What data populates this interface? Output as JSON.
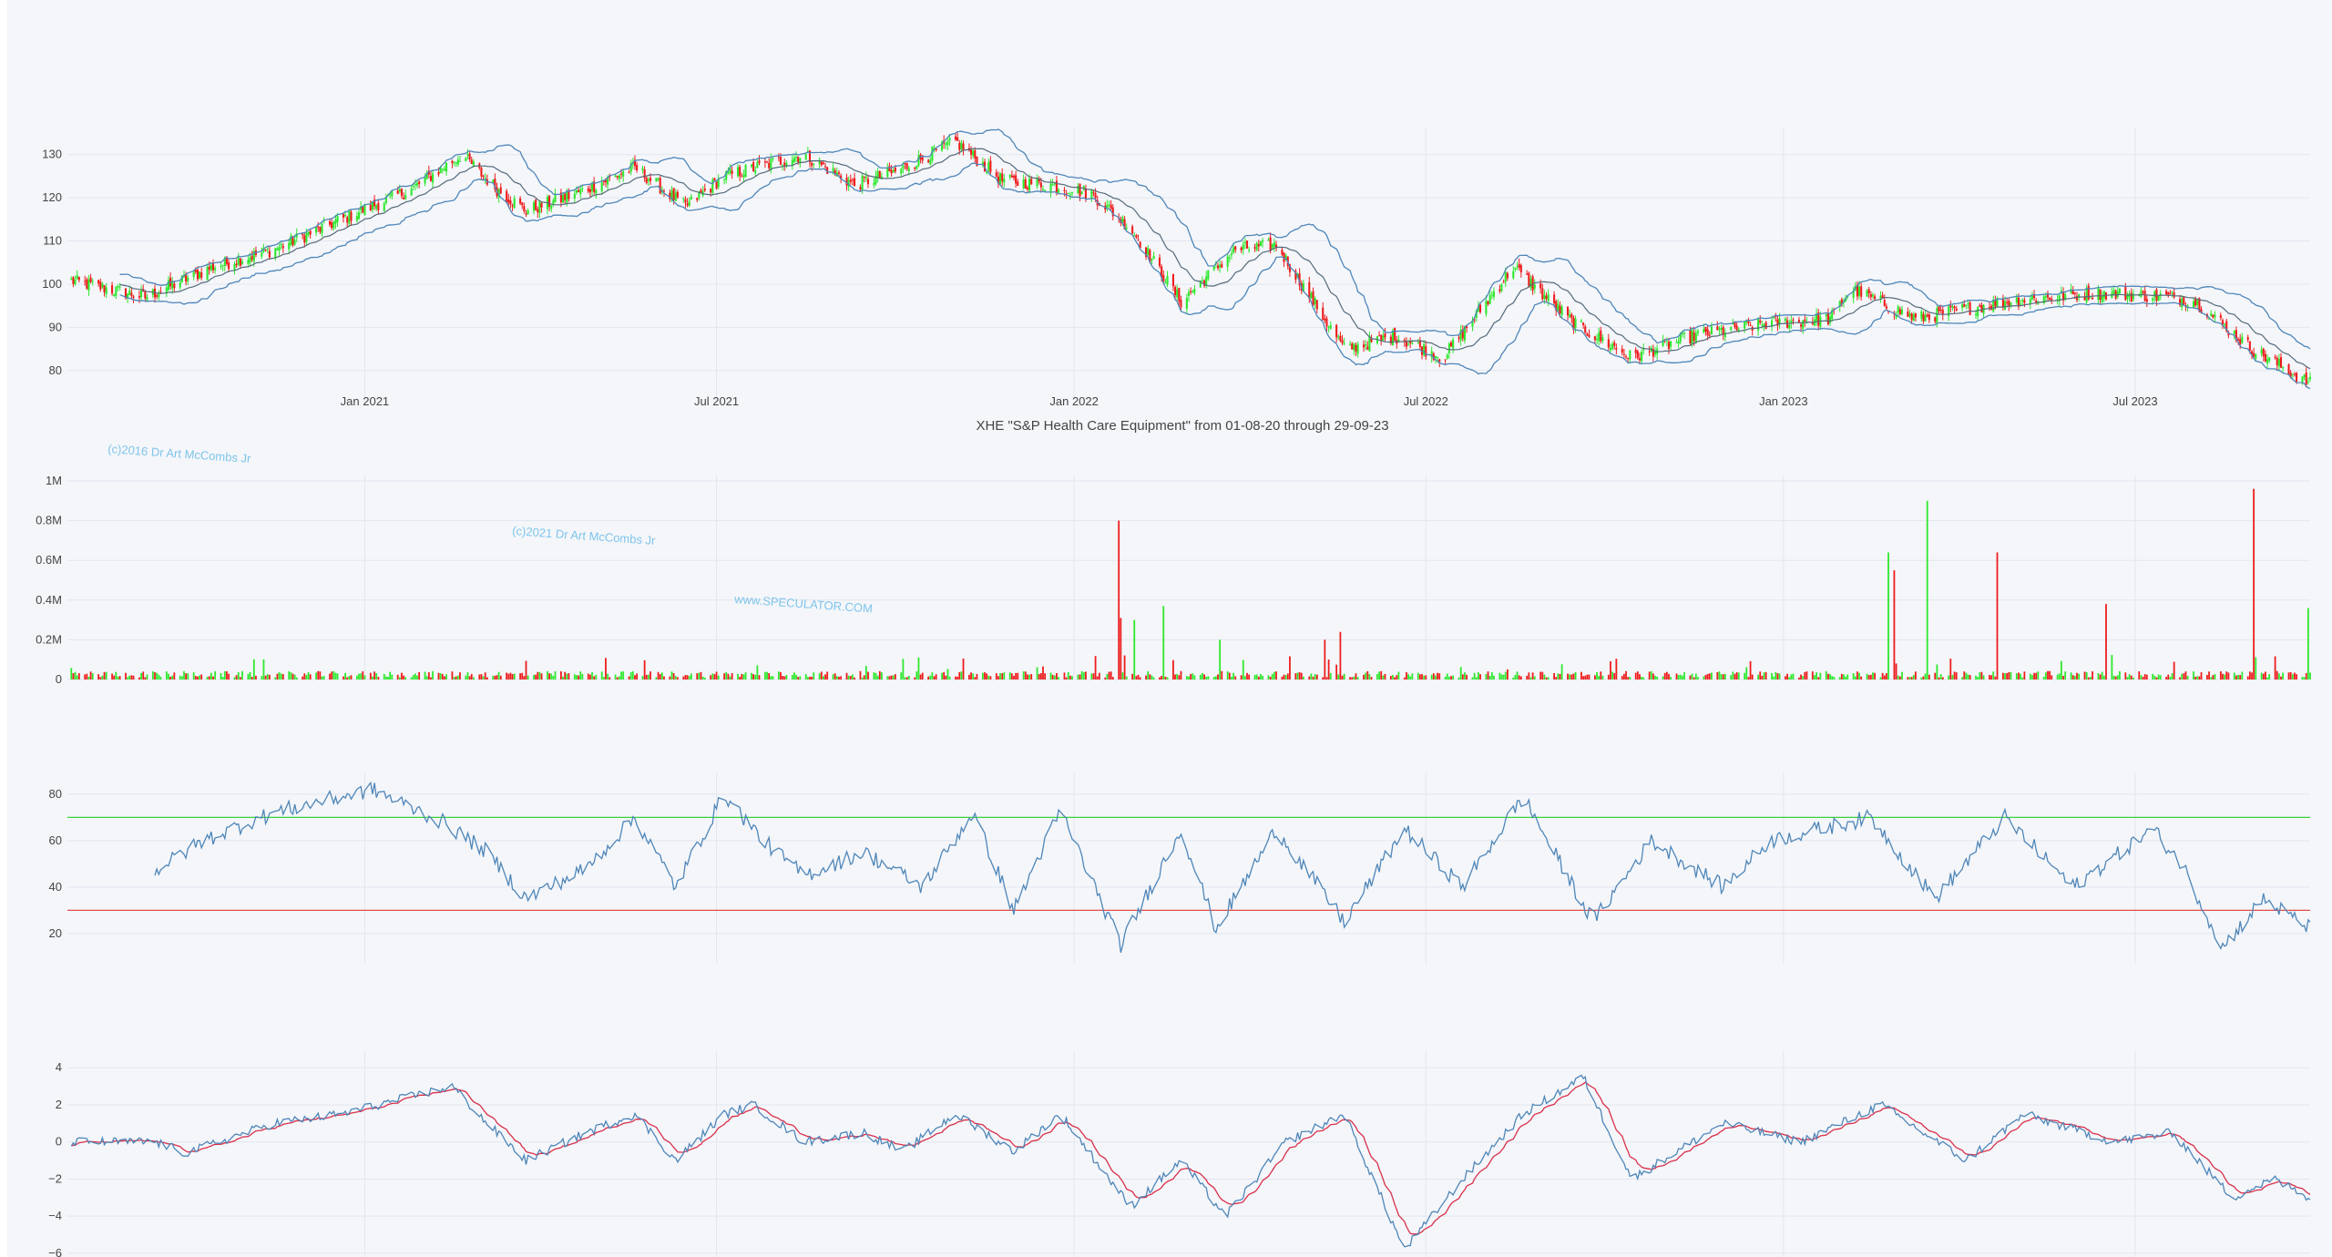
{
  "colors": {
    "up": "#2ee82e",
    "down": "#ee1c1c",
    "band": "#4f86b8",
    "rsi_line": "#4f86b8",
    "rsi_upper": "#3bd13b",
    "rsi_lower": "#e34a4a",
    "macd": "#4f86b8",
    "signal": "#d9304a",
    "grid": "#e2e6ee"
  },
  "watermarks": [
    "(c)2016 Dr Art McCombs Jr",
    "(c)2021 Dr Art McCombs Jr",
    "www.SPECULATOR.COM"
  ],
  "chart_data": [
    {
      "type": "candlestick",
      "title": "XHE \"S&P Health Care Equipment\" from 01-08-20 through 29-09-23",
      "x_tick_labels": [
        "Jan 2021",
        "Jul 2021",
        "Jan 2022",
        "Jul 2022",
        "Jan 2023",
        "Jul 2023"
      ],
      "y_tick_labels": [
        "80",
        "90",
        "100",
        "110",
        "120",
        "130"
      ],
      "ylim": [
        73,
        135
      ],
      "close_keypoints": [
        [
          "2020-08-01",
          101
        ],
        [
          "2020-09-10",
          97
        ],
        [
          "2020-10-15",
          104
        ],
        [
          "2020-11-15",
          108
        ],
        [
          "2020-12-20",
          115
        ],
        [
          "2021-01-25",
          122
        ],
        [
          "2021-02-20",
          130
        ],
        [
          "2021-03-10",
          122
        ],
        [
          "2021-03-25",
          117
        ],
        [
          "2021-04-20",
          121
        ],
        [
          "2021-05-20",
          127
        ],
        [
          "2021-06-15",
          118
        ],
        [
          "2021-07-05",
          125
        ],
        [
          "2021-08-15",
          130
        ],
        [
          "2021-09-10",
          123
        ],
        [
          "2021-10-01",
          126
        ],
        [
          "2021-11-01",
          133
        ],
        [
          "2021-11-25",
          124
        ],
        [
          "2021-12-20",
          123
        ],
        [
          "2022-01-10",
          121
        ],
        [
          "2022-01-30",
          113
        ],
        [
          "2022-02-25",
          96
        ],
        [
          "2022-03-25",
          108
        ],
        [
          "2022-04-15",
          109
        ],
        [
          "2022-05-20",
          85
        ],
        [
          "2022-06-15",
          88
        ],
        [
          "2022-07-10",
          83
        ],
        [
          "2022-08-15",
          104
        ],
        [
          "2022-09-15",
          91
        ],
        [
          "2022-10-15",
          83
        ],
        [
          "2022-11-15",
          88
        ],
        [
          "2022-12-25",
          91
        ],
        [
          "2023-01-25",
          92
        ],
        [
          "2023-02-05",
          99
        ],
        [
          "2023-03-10",
          92
        ],
        [
          "2023-04-25",
          96
        ],
        [
          "2023-06-10",
          98
        ],
        [
          "2023-07-20",
          97
        ],
        [
          "2023-08-01",
          96
        ],
        [
          "2023-08-30",
          85
        ],
        [
          "2023-09-29",
          77
        ]
      ]
    },
    {
      "type": "bar",
      "name": "volume",
      "y_tick_labels": [
        "0",
        "0.2M",
        "0.4M",
        "0.6M",
        "0.8M",
        "1M"
      ],
      "ylim": [
        0,
        1000000
      ],
      "baseline_volume": 25000,
      "spikes": [
        [
          "2022-01-24",
          800000,
          "down"
        ],
        [
          "2022-01-25",
          310000,
          "down"
        ],
        [
          "2022-02-01",
          300000,
          "up"
        ],
        [
          "2022-02-16",
          370000,
          "up"
        ],
        [
          "2022-05-10",
          200000,
          "down"
        ],
        [
          "2022-05-18",
          240000,
          "down"
        ],
        [
          "2022-03-17",
          200000,
          "up"
        ],
        [
          "2023-02-24",
          640000,
          "up"
        ],
        [
          "2023-02-27",
          550000,
          "down"
        ],
        [
          "2023-03-16",
          900000,
          "up"
        ],
        [
          "2023-04-21",
          640000,
          "down"
        ],
        [
          "2023-06-16",
          380000,
          "down"
        ],
        [
          "2023-08-31",
          960000,
          "down"
        ],
        [
          "2023-09-28",
          360000,
          "up"
        ]
      ]
    },
    {
      "type": "line",
      "name": "rsi",
      "y_tick_labels": [
        "20",
        "40",
        "60",
        "80"
      ],
      "ylim": [
        7,
        87
      ],
      "upper": 70,
      "lower": 30,
      "keypoints": [
        [
          "2020-09-15",
          47
        ],
        [
          "2020-10-10",
          60
        ],
        [
          "2020-11-15",
          72
        ],
        [
          "2020-12-10",
          77
        ],
        [
          "2021-01-05",
          82
        ],
        [
          "2021-02-10",
          68
        ],
        [
          "2021-03-05",
          55
        ],
        [
          "2021-03-25",
          35
        ],
        [
          "2021-04-25",
          48
        ],
        [
          "2021-05-20",
          70
        ],
        [
          "2021-06-10",
          40
        ],
        [
          "2021-07-05",
          80
        ],
        [
          "2021-07-25",
          60
        ],
        [
          "2021-08-15",
          45
        ],
        [
          "2021-09-15",
          55
        ],
        [
          "2021-10-15",
          40
        ],
        [
          "2021-11-10",
          72
        ],
        [
          "2021-12-01",
          30
        ],
        [
          "2021-12-25",
          73
        ],
        [
          "2022-01-25",
          15
        ],
        [
          "2022-02-25",
          65
        ],
        [
          "2022-03-15",
          22
        ],
        [
          "2022-04-15",
          65
        ],
        [
          "2022-05-20",
          25
        ],
        [
          "2022-06-20",
          65
        ],
        [
          "2022-07-20",
          40
        ],
        [
          "2022-08-20",
          79
        ],
        [
          "2022-09-25",
          25
        ],
        [
          "2022-10-25",
          60
        ],
        [
          "2022-12-01",
          40
        ],
        [
          "2022-12-25",
          60
        ],
        [
          "2023-02-15",
          70
        ],
        [
          "2023-03-20",
          35
        ],
        [
          "2023-04-25",
          70
        ],
        [
          "2023-05-30",
          40
        ],
        [
          "2023-07-10",
          65
        ],
        [
          "2023-07-25",
          50
        ],
        [
          "2023-08-15",
          14
        ],
        [
          "2023-09-05",
          35
        ],
        [
          "2023-09-29",
          22
        ]
      ]
    },
    {
      "type": "line",
      "name": "macd",
      "y_tick_labels": [
        "−6",
        "−4",
        "−2",
        "0",
        "2",
        "4"
      ],
      "ylim": [
        -6.2,
        4.6
      ],
      "macd_keypoints": [
        [
          "2020-08-01",
          0
        ],
        [
          "2020-09-15",
          0
        ],
        [
          "2020-10-01",
          -0.6
        ],
        [
          "2020-11-15",
          1
        ],
        [
          "2020-12-20",
          1.5
        ],
        [
          "2021-02-15",
          3
        ],
        [
          "2021-03-05",
          1
        ],
        [
          "2021-03-25",
          -1
        ],
        [
          "2021-04-25",
          0.5
        ],
        [
          "2021-05-20",
          1.5
        ],
        [
          "2021-06-10",
          -1
        ],
        [
          "2021-07-05",
          1.5
        ],
        [
          "2021-07-20",
          2
        ],
        [
          "2021-08-15",
          0
        ],
        [
          "2021-09-15",
          0.5
        ],
        [
          "2021-10-05",
          -0.5
        ],
        [
          "2021-11-01",
          1.5
        ],
        [
          "2021-12-01",
          -0.5
        ],
        [
          "2021-12-25",
          1.5
        ],
        [
          "2022-01-30",
          -3.5
        ],
        [
          "2022-02-25",
          -1
        ],
        [
          "2022-03-20",
          -4
        ],
        [
          "2022-04-20",
          0
        ],
        [
          "2022-05-20",
          1.5
        ],
        [
          "2022-06-20",
          -5.8
        ],
        [
          "2022-07-20",
          -2
        ],
        [
          "2022-08-20",
          1.5
        ],
        [
          "2022-09-20",
          3.5
        ],
        [
          "2022-10-15",
          -2
        ],
        [
          "2022-12-01",
          1
        ],
        [
          "2023-01-10",
          0
        ],
        [
          "2023-02-20",
          2
        ],
        [
          "2023-04-05",
          -1
        ],
        [
          "2023-05-05",
          1.5
        ],
        [
          "2023-06-20",
          0
        ],
        [
          "2023-07-20",
          0.5
        ],
        [
          "2023-08-20",
          -3
        ],
        [
          "2023-09-10",
          -2
        ],
        [
          "2023-09-29",
          -3
        ]
      ]
    }
  ]
}
